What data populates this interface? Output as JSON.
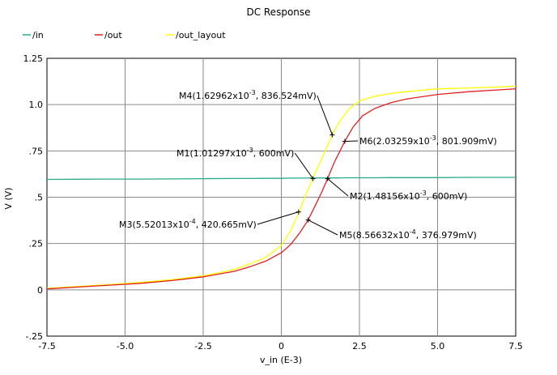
{
  "chart_data": {
    "type": "line",
    "title": "DC Response",
    "xlabel": "v_in (E-3)",
    "ylabel": "V (V)",
    "xlim": [
      -7.5,
      7.5
    ],
    "ylim": [
      -0.25,
      1.25
    ],
    "grid": true,
    "legend_placement": "top-left",
    "x_ticks": [
      -7.5,
      -5.0,
      -2.5,
      0,
      2.5,
      5.0,
      7.5
    ],
    "x_tick_labels": [
      "-7.5",
      "-5.0",
      "-2.5",
      "0",
      "2.5",
      "5.0",
      "7.5"
    ],
    "y_ticks": [
      -0.25,
      0,
      0.25,
      0.5,
      0.75,
      1.0,
      1.25
    ],
    "y_tick_labels": [
      "-.25",
      "0",
      ".25",
      ".5",
      ".75",
      "1.0",
      "1.25"
    ],
    "x": [
      -7.5,
      -6.5,
      -5.5,
      -4.5,
      -3.5,
      -2.5,
      -1.5,
      -1.0,
      -0.5,
      0,
      0.3,
      0.55,
      0.75,
      1.0,
      1.3,
      1.63,
      1.8,
      2.0,
      2.2,
      2.5,
      3.0,
      3.5,
      4.0,
      5.0,
      6.0,
      7.0,
      7.5
    ],
    "series": [
      {
        "name": "/in",
        "color": "#2aaa8a",
        "values": [
          0.596,
          0.597,
          0.598,
          0.598,
          0.599,
          0.6,
          0.601,
          0.601,
          0.602,
          0.602,
          0.603,
          0.603,
          0.603,
          0.604,
          0.604,
          0.604,
          0.604,
          0.605,
          0.605,
          0.605,
          0.605,
          0.606,
          0.606,
          0.606,
          0.607,
          0.607,
          0.607
        ]
      },
      {
        "name": "/out",
        "color": "#e02020",
        "x": [
          -7.5,
          -6.5,
          -5.5,
          -4.5,
          -3.5,
          -2.5,
          -1.5,
          -1.0,
          -0.5,
          0,
          0.3,
          0.6,
          0.857,
          1.1,
          1.3,
          1.48,
          1.7,
          2.03,
          2.3,
          2.6,
          3.0,
          3.5,
          4.0,
          5.0,
          6.0,
          7.0,
          7.5
        ],
        "values": [
          0.005,
          0.015,
          0.025,
          0.035,
          0.05,
          0.07,
          0.1,
          0.125,
          0.155,
          0.2,
          0.245,
          0.31,
          0.377,
          0.46,
          0.53,
          0.6,
          0.69,
          0.802,
          0.88,
          0.94,
          0.98,
          1.01,
          1.03,
          1.055,
          1.07,
          1.08,
          1.085
        ]
      },
      {
        "name": "/out_layout",
        "color": "#ffff00",
        "values": [
          0.008,
          0.018,
          0.028,
          0.04,
          0.055,
          0.075,
          0.11,
          0.14,
          0.175,
          0.24,
          0.32,
          0.41,
          0.5,
          0.6,
          0.71,
          0.837,
          0.89,
          0.94,
          0.98,
          1.02,
          1.045,
          1.06,
          1.07,
          1.085,
          1.09,
          1.095,
          1.1
        ]
      }
    ],
    "markers": [
      {
        "label": "M1(1.01297x10",
        "exp": "-3",
        "tail": ", 600mV)",
        "x": 1.01297,
        "y": 0.6
      },
      {
        "label": "M2(1.48156x10",
        "exp": "-3",
        "tail": ", 600mV)",
        "x": 1.48156,
        "y": 0.6
      },
      {
        "label": "M3(5.52013x10",
        "exp": "-4",
        "tail": ", 420.665mV)",
        "x": 0.552013,
        "y": 0.420665
      },
      {
        "label": "M4(1.62962x10",
        "exp": "-3",
        "tail": ", 836.524mV)",
        "x": 1.62962,
        "y": 0.836524
      },
      {
        "label": "M5(8.56632x10",
        "exp": "-4",
        "tail": ", 376.979mV)",
        "x": 0.856632,
        "y": 0.376979
      },
      {
        "label": "M6(2.03259x10",
        "exp": "-3",
        "tail": ", 801.909mV)",
        "x": 2.03259,
        "y": 0.801909
      }
    ]
  }
}
